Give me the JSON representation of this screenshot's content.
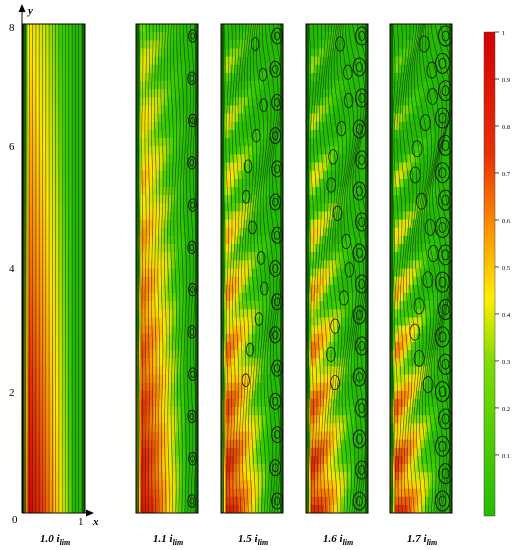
{
  "figure": {
    "axes": {
      "y_label": "y",
      "x_label": "x",
      "origin_label": "0",
      "y_ticks": [
        "2",
        "4",
        "6",
        "8"
      ],
      "x_tick_end": "1"
    },
    "panels": [
      {
        "current": "1.0",
        "unit_main": "i",
        "unit_sub": "lim",
        "vortex_strength": 0.0
      },
      {
        "current": "1.1",
        "unit_main": "i",
        "unit_sub": "lim",
        "vortex_strength": 0.25
      },
      {
        "current": "1.5",
        "unit_main": "i",
        "unit_sub": "lim",
        "vortex_strength": 0.6
      },
      {
        "current": "1.6",
        "unit_main": "i",
        "unit_sub": "lim",
        "vortex_strength": 0.8
      },
      {
        "current": "1.7",
        "unit_main": "i",
        "unit_sub": "lim",
        "vortex_strength": 1.0
      }
    ],
    "colorbar": {
      "ticks": [
        "1",
        "0.9",
        "0.8",
        "0.7",
        "0.6",
        "0.5",
        "0.4",
        "0.3",
        "0.2",
        "0.1"
      ],
      "colors": {
        "high": "#d40000",
        "mid_high": "#ff8c00",
        "mid": "#ffee00",
        "low": "#2ecc00",
        "bottom": "#22bb00"
      }
    }
  }
}
